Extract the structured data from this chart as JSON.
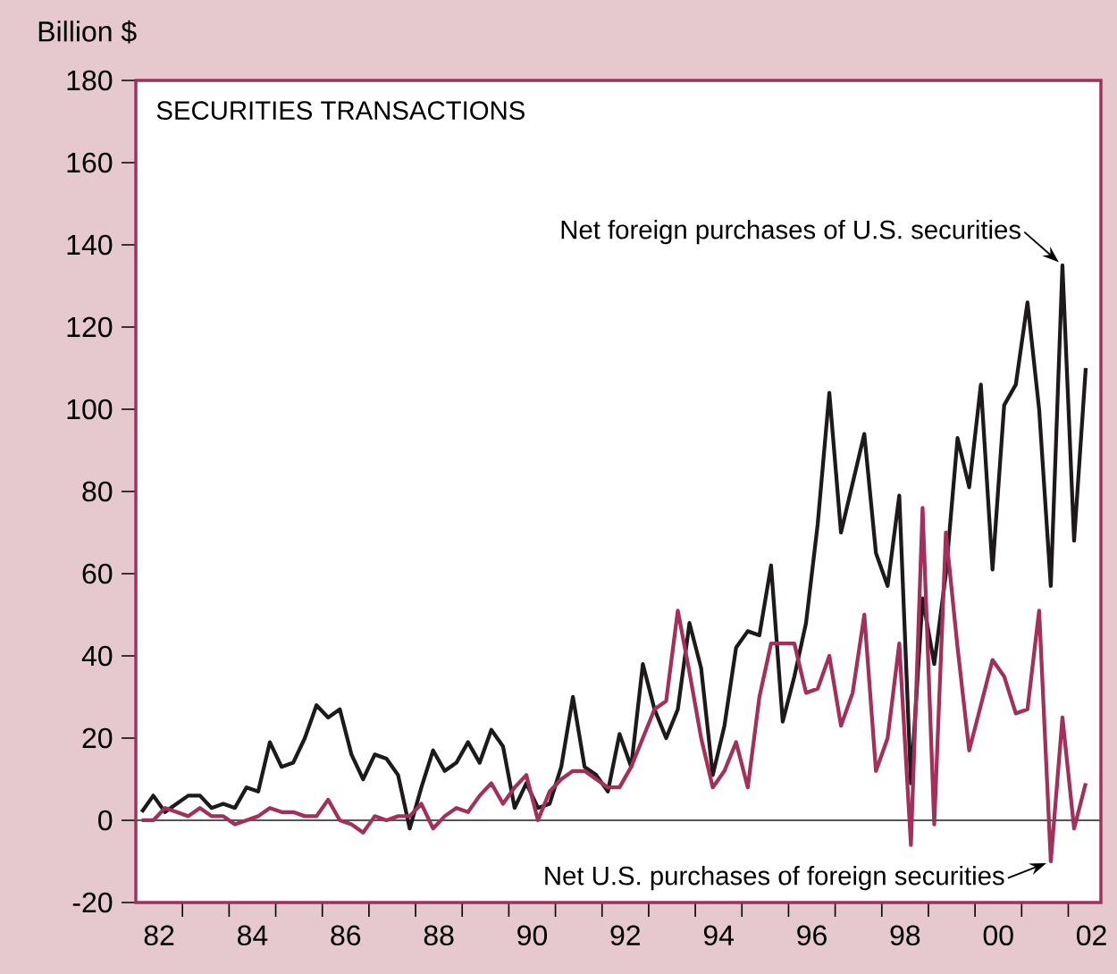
{
  "chart_data": {
    "type": "line",
    "title": "SECURITIES TRANSACTIONS",
    "ylabel": "Billion $",
    "x": [
      1981.625,
      1981.875,
      1982.125,
      1982.375,
      1982.625,
      1982.875,
      1983.125,
      1983.375,
      1983.625,
      1983.875,
      1984.125,
      1984.375,
      1984.625,
      1984.875,
      1985.125,
      1985.375,
      1985.625,
      1985.875,
      1986.125,
      1986.375,
      1986.625,
      1986.875,
      1987.125,
      1987.375,
      1987.625,
      1987.875,
      1988.125,
      1988.375,
      1988.625,
      1988.875,
      1989.125,
      1989.375,
      1989.625,
      1989.875,
      1990.125,
      1990.375,
      1990.625,
      1990.875,
      1991.125,
      1991.375,
      1991.625,
      1991.875,
      1992.125,
      1992.375,
      1992.625,
      1992.875,
      1993.125,
      1993.375,
      1993.625,
      1993.875,
      1994.125,
      1994.375,
      1994.625,
      1994.875,
      1995.125,
      1995.375,
      1995.625,
      1995.875,
      1996.125,
      1996.375,
      1996.625,
      1996.875,
      1997.125,
      1997.375,
      1997.625,
      1997.875,
      1998.125,
      1998.375,
      1998.625,
      1998.875,
      1999.125,
      1999.375,
      1999.625,
      1999.875,
      2000.125,
      2000.375,
      2000.625,
      2000.875,
      2001.125,
      2001.375,
      2001.625,
      2001.875
    ],
    "series": [
      {
        "color": "#1e1a1b",
        "values": [
          2,
          6,
          2,
          4,
          6,
          6,
          3,
          4,
          3,
          8,
          7,
          19,
          13,
          14,
          20,
          28,
          25,
          27,
          16,
          10,
          16,
          15,
          11,
          -2,
          8,
          17,
          12,
          14,
          19,
          14,
          22,
          18,
          3,
          9,
          3,
          4,
          13,
          30,
          13,
          11,
          7,
          21,
          13,
          38,
          27,
          20,
          27,
          48,
          37,
          11,
          23,
          42,
          46,
          45,
          62,
          24,
          35,
          48,
          72,
          104,
          70,
          82,
          94,
          65,
          57,
          79,
          9,
          54,
          38,
          60,
          93,
          81,
          106,
          61,
          101,
          106,
          126,
          100,
          57,
          135,
          68,
          110
        ]
      },
      {
        "color": "#a3305a",
        "values": [
          0,
          0,
          3,
          2,
          1,
          3,
          1,
          1,
          -1,
          0,
          1,
          3,
          2,
          2,
          1,
          1,
          5,
          0,
          -1,
          -3,
          1,
          0,
          1,
          1,
          4,
          -2,
          1,
          3,
          2,
          6,
          9,
          4,
          8,
          11,
          0,
          7,
          10,
          12,
          12,
          10,
          8,
          8,
          13,
          20,
          27,
          29,
          51,
          36,
          20,
          8,
          12,
          19,
          8,
          30,
          43,
          43,
          43,
          31,
          32,
          40,
          23,
          31,
          50,
          12,
          20,
          43,
          -6,
          76,
          -1,
          70,
          42,
          17,
          28,
          39,
          35,
          26,
          27,
          51,
          -10,
          25,
          -2,
          9
        ]
      }
    ],
    "xlim": [
      1981.5,
      2002.2
    ],
    "xticks": [
      {
        "value": 1982.5,
        "label": null
      },
      {
        "value": 1983.5,
        "label": null
      },
      {
        "value": 1984.5,
        "label": null
      },
      {
        "value": 1985.5,
        "label": null
      },
      {
        "value": 1986.5,
        "label": null
      },
      {
        "value": 1987.5,
        "label": null
      },
      {
        "value": 1988.5,
        "label": null
      },
      {
        "value": 1989.5,
        "label": null
      },
      {
        "value": 1990.5,
        "label": null
      },
      {
        "value": 1991.5,
        "label": null
      },
      {
        "value": 1992.5,
        "label": null
      },
      {
        "value": 1993.5,
        "label": null
      },
      {
        "value": 1994.5,
        "label": null
      },
      {
        "value": 1995.5,
        "label": null
      },
      {
        "value": 1996.5,
        "label": null
      },
      {
        "value": 1997.5,
        "label": null
      },
      {
        "value": 1998.5,
        "label": null
      },
      {
        "value": 1999.5,
        "label": null
      },
      {
        "value": 2000.5,
        "label": null
      },
      {
        "value": 2001.5,
        "label": null
      },
      {
        "value": 1982,
        "label": "82"
      },
      {
        "value": 1984,
        "label": "84"
      },
      {
        "value": 1986,
        "label": "86"
      },
      {
        "value": 1988,
        "label": "88"
      },
      {
        "value": 1990,
        "label": "90"
      },
      {
        "value": 1992,
        "label": "92"
      },
      {
        "value": 1994,
        "label": "94"
      },
      {
        "value": 1996,
        "label": "96"
      },
      {
        "value": 1998,
        "label": "98"
      },
      {
        "value": 2000,
        "label": "00"
      },
      {
        "value": 2002,
        "label": "02"
      }
    ],
    "ylim": [
      -20,
      180
    ],
    "yticks": [
      -20,
      0,
      20,
      40,
      60,
      80,
      100,
      120,
      140,
      160,
      180
    ],
    "ref_lines": [
      {
        "axis": "y",
        "value": 0,
        "color": "#555555"
      }
    ],
    "marker": "none",
    "line_style": "solid",
    "annotations": [
      {
        "text": "Net foreign purchases of U.S. securities",
        "x": 2001.375,
        "y": 135
      },
      {
        "text": "Net U.S.  purchases of foreign securities",
        "x": 2001.125,
        "y": -10
      }
    ]
  }
}
